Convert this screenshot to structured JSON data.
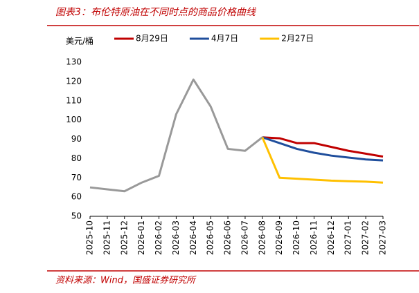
{
  "chart_data": {
    "type": "line",
    "title": "图表3：布伦特原油在不同时点的商品价格曲线",
    "source": "资料来源：Wind，国盛证券研究所",
    "y_label": "美元/桶",
    "categories": [
      "2025-10",
      "2025-11",
      "2025-12",
      "2026-01",
      "2026-02",
      "2026-03",
      "2026-04",
      "2026-05",
      "2026-06",
      "2026-07",
      "2026-08",
      "2026-09",
      "2026-10",
      "2026-11",
      "2026-12",
      "2027-01",
      "2027-02",
      "2027-03"
    ],
    "series": [
      {
        "color": "#999999",
        "values": [
          65,
          64,
          63,
          67.5,
          71,
          103,
          121,
          107,
          85,
          84,
          91,
          null,
          null,
          null,
          null,
          null,
          null,
          null
        ]
      },
      {
        "name": "8月29日",
        "color": "#c00000",
        "values": [
          null,
          null,
          null,
          null,
          null,
          null,
          null,
          null,
          null,
          null,
          91,
          90.5,
          88,
          88,
          86,
          84,
          82.5,
          81
        ]
      },
      {
        "name": "4月7日",
        "color": "#1f4e9c",
        "values": [
          null,
          null,
          null,
          null,
          null,
          null,
          null,
          null,
          null,
          null,
          91,
          88,
          85,
          83,
          81.5,
          80.5,
          79.5,
          79
        ]
      },
      {
        "name": "2月27日",
        "color": "#ffc000",
        "values": [
          null,
          null,
          null,
          null,
          null,
          null,
          null,
          null,
          null,
          null,
          91,
          70,
          69.5,
          69,
          68.5,
          68.2,
          68,
          67.5
        ]
      }
    ],
    "ylim": [
      50,
      130
    ],
    "yticks": [
      50,
      60,
      70,
      80,
      90,
      100,
      110,
      120,
      130
    ],
    "grid": false
  }
}
